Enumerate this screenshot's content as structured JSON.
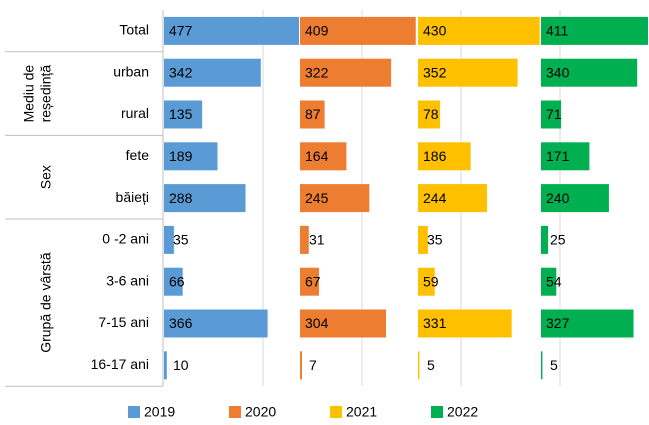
{
  "chart_data": {
    "type": "bar",
    "categories": [
      "Total",
      "urban",
      "rural",
      "fete",
      "băieți",
      "0 -2 ani",
      "3-6 ani",
      "7-15 ani",
      "16-17 ani"
    ],
    "groups": [
      {
        "name": [
          "Mediu de",
          "reședință"
        ],
        "first": 1,
        "last": 2
      },
      {
        "name": [
          "Sex"
        ],
        "first": 3,
        "last": 4
      },
      {
        "name": [
          "Grupă de vârstă"
        ],
        "first": 5,
        "last": 8
      }
    ],
    "series": [
      {
        "name": "2019",
        "color": "#5b9bd5",
        "values": [
          477,
          342,
          135,
          189,
          288,
          35,
          66,
          366,
          10
        ]
      },
      {
        "name": "2020",
        "color": "#ed7d31",
        "values": [
          409,
          322,
          87,
          164,
          245,
          31,
          67,
          304,
          7
        ]
      },
      {
        "name": "2021",
        "color": "#ffc000",
        "values": [
          430,
          352,
          78,
          186,
          244,
          35,
          59,
          331,
          5
        ]
      },
      {
        "name": "2022",
        "color": "#00b050",
        "values": [
          411,
          340,
          71,
          171,
          240,
          25,
          54,
          327,
          5
        ]
      }
    ],
    "legend": "bottom"
  }
}
